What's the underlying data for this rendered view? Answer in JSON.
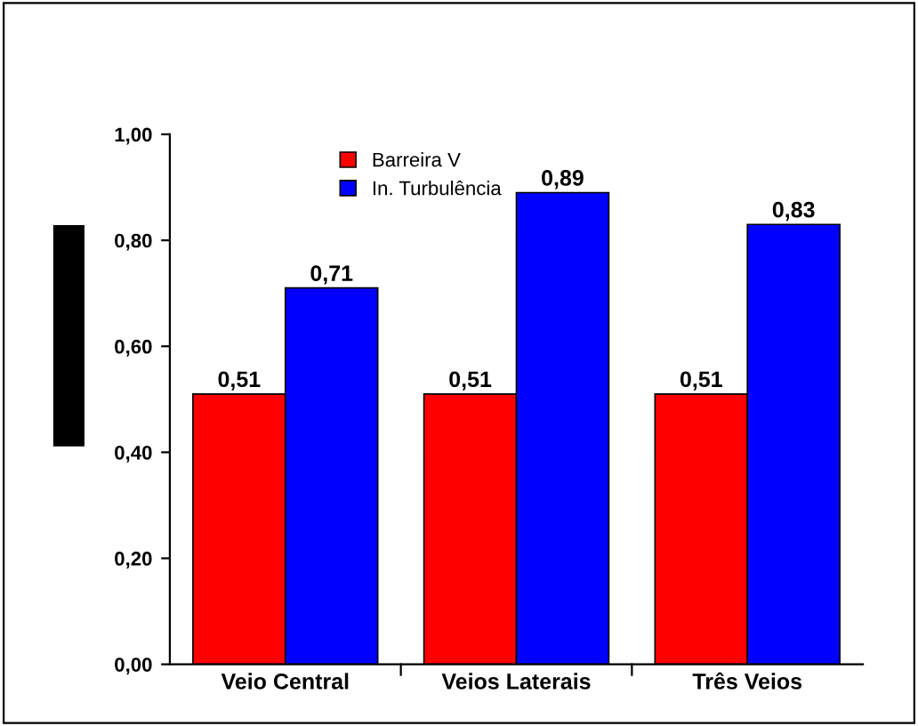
{
  "chart_data": {
    "type": "bar",
    "categories": [
      "Veio Central",
      "Veios Laterais",
      "Três Veios"
    ],
    "series": [
      {
        "name": "Barreira V",
        "color": "#ff0000",
        "values": [
          0.51,
          0.51,
          0.51
        ],
        "value_labels": [
          "0,51",
          "0,51",
          "0,51"
        ]
      },
      {
        "name": "In. Turbulência",
        "color": "#0000ff",
        "values": [
          0.71,
          0.89,
          0.83
        ],
        "value_labels": [
          "0,71",
          "0,89",
          "0,83"
        ]
      }
    ],
    "ylim": [
      0,
      1
    ],
    "yticks": [
      {
        "value": 0,
        "label": "0,00"
      },
      {
        "value": 0.2,
        "label": "0,20"
      },
      {
        "value": 0.4,
        "label": "0,40"
      },
      {
        "value": 0.6,
        "label": "0,60"
      },
      {
        "value": 0.8,
        "label": "0,80"
      },
      {
        "value": 1,
        "label": "1,00"
      }
    ],
    "grid": false,
    "legend": "top left"
  }
}
